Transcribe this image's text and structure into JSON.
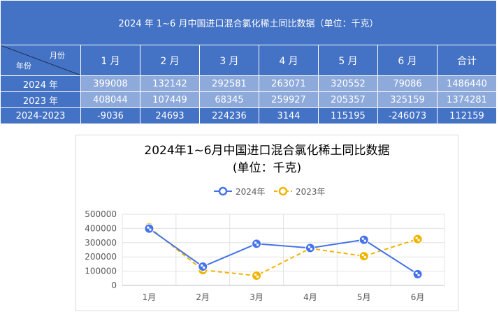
{
  "table": {
    "title": "2024 年 1~6 月中国进口混合氯化稀土同比数据（单位：千克）",
    "corner_month": "月份",
    "corner_year": "年份",
    "headers": [
      "1 月",
      "2 月",
      "3 月",
      "4 月",
      "5 月",
      "6 月",
      "合计"
    ],
    "rows": [
      {
        "label": "2024 年",
        "values": [
          "399008",
          "132142",
          "292581",
          "263071",
          "320552",
          "79086",
          "1486440"
        ]
      },
      {
        "label": "2023 年",
        "values": [
          "408044",
          "107449",
          "68345",
          "259927",
          "205357",
          "325159",
          "1374281"
        ]
      },
      {
        "label": "2024-2023",
        "values": [
          "-9036",
          "24693",
          "224236",
          "3144",
          "115195",
          "-246073",
          "112159"
        ]
      }
    ]
  },
  "chart_data": {
    "type": "line",
    "title": "2024年1~6月中国进口混合氯化稀土同比数据",
    "subtitle": "(单位：千克)",
    "categories": [
      "1月",
      "2月",
      "3月",
      "4月",
      "5月",
      "6月"
    ],
    "series": [
      {
        "name": "2024年",
        "values": [
          399008,
          132142,
          292581,
          263071,
          320552,
          79086
        ],
        "color": "#4472e8",
        "dash": false
      },
      {
        "name": "2023年",
        "values": [
          408044,
          107449,
          68345,
          259927,
          205357,
          325159
        ],
        "color": "#f0b400",
        "dash": true
      }
    ],
    "ylim": [
      0,
      500000
    ],
    "yticks": [
      "0",
      "100000",
      "200000",
      "300000",
      "400000",
      "500000"
    ],
    "grid": true,
    "legend": "top"
  }
}
